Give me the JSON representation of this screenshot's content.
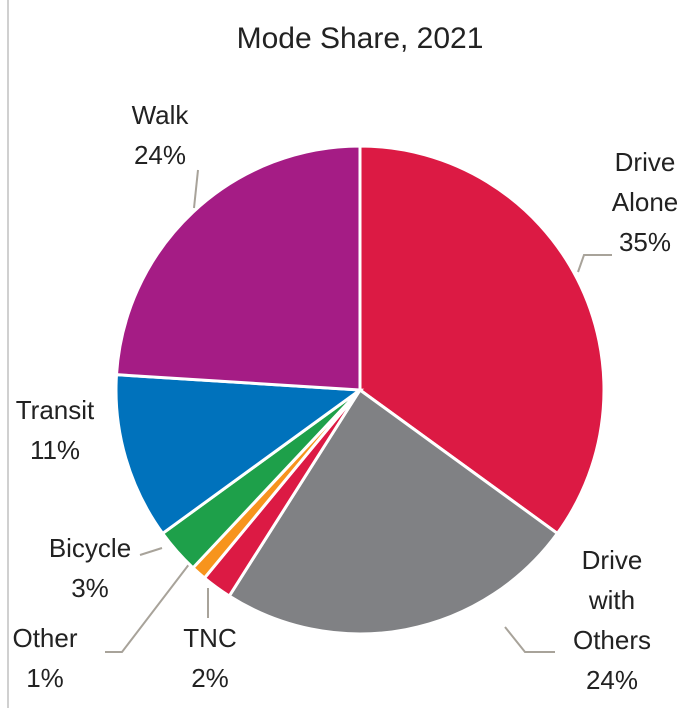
{
  "chart_data": {
    "type": "pie",
    "title": "Mode Share, 2021",
    "categories": [
      "Drive Alone",
      "Drive with Others",
      "TNC",
      "Other",
      "Bicycle",
      "Transit",
      "Walk"
    ],
    "values": [
      35,
      24,
      2,
      1,
      3,
      11,
      24
    ],
    "value_labels": [
      "35%",
      "24%",
      "2%",
      "1%",
      "3%",
      "11%",
      "24%"
    ],
    "colors": [
      "#dc1a44",
      "#808184",
      "#dc1a44",
      "#f7941d",
      "#1ea04a",
      "#0072bc",
      "#a51c85"
    ]
  }
}
